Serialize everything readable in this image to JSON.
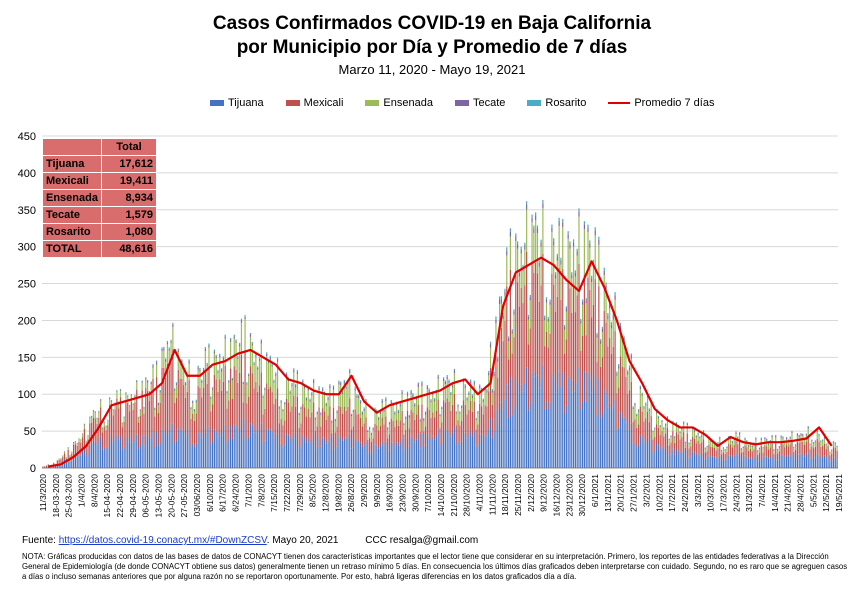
{
  "header": {
    "title_line1": "Casos Confirmados COVID-19 en Baja California",
    "title_line2": "por Municipio por Día y Promedio de 7 días",
    "subtitle": "Marzo 11, 2020  - Mayo 19, 2021"
  },
  "legend": [
    {
      "name": "Tijuana",
      "color": "#4472c4"
    },
    {
      "name": "Mexicali",
      "color": "#c0504d"
    },
    {
      "name": "Ensenada",
      "color": "#9bbb59"
    },
    {
      "name": "Tecate",
      "color": "#8064a2"
    },
    {
      "name": "Rosarito",
      "color": "#4bacc6"
    },
    {
      "name": "Promedio 7 días",
      "color": "#e00000"
    }
  ],
  "totals": {
    "header": "Total",
    "rows": [
      {
        "name": "Tijuana",
        "value": "17,612"
      },
      {
        "name": "Mexicali",
        "value": "19,411"
      },
      {
        "name": "Ensenada",
        "value": "8,934"
      },
      {
        "name": "Tecate",
        "value": "1,579"
      },
      {
        "name": "Rosarito",
        "value": "1,080"
      },
      {
        "name": "TOTAL",
        "value": "48,616"
      }
    ]
  },
  "footer": {
    "source_label": "Fuente:",
    "source_link": "https://datos.covid-19.conacyt.mx/#DownZCSV",
    "source_date": ". Mayo 20, 2021",
    "credit": "CCC       resalga@gmail.com",
    "note": "NOTA: Gráficas producidas con datos de las bases de datos de CONACYT tienen dos características importantes que el lector tiene que considerar en su interpretación. Primero, los reportes de las entidades federativas a la Dirección General de Epidemiología (de donde CONACYT obtiene sus datos) generalmente tienen un retraso mínimo 5 días. En consecuencia los últimos días graficados deben interpretarse con cuidado. Segundo, no es raro que se agreguen casos a días o incluso semanas anteriores que por alguna razón no se reportaron oportunamente. Por esto, habrá ligeras diferencias en los datos graficados día a día."
  },
  "chart_data": {
    "type": "bar",
    "stacked": true,
    "ylim": [
      0,
      450
    ],
    "yticks": [
      0,
      50,
      100,
      150,
      200,
      250,
      300,
      350,
      400,
      450
    ],
    "x_tick_labels": [
      "11/3/2020",
      "18-03-2020",
      "25-03-2020",
      "1/4/2020",
      "8/4/2020",
      "15-04-2020",
      "22-04-2020",
      "29-04-2020",
      "06-05-2020",
      "13-05-2020",
      "20-05-2020",
      "27-05-2020",
      "03/06/2020",
      "6/10/2020",
      "6/17/2020",
      "6/24/2020",
      "7/1/2020",
      "7/8/2020",
      "7/15/2020",
      "7/22/2020",
      "7/29/2020",
      "8/5/2020",
      "12/8/2020",
      "19/8/2020",
      "26/8/2020",
      "2/9/2020",
      "9/9/2020",
      "16/9/2020",
      "23/9/2020",
      "30/9/2020",
      "7/10/2020",
      "14/10/2020",
      "21/10/2020",
      "28/10/2020",
      "4/11/2020",
      "11/11/2020",
      "18/11/2020",
      "25/11/2020",
      "2/12/2020",
      "9/12/2020",
      "16/12/2020",
      "23/12/2020",
      "30/12/2020",
      "6/1/2021",
      "13/1/2021",
      "20/1/2021",
      "27/1/2021",
      "3/2/2021",
      "10/2/2021",
      "17/2/2021",
      "24/2/2021",
      "3/3/2021",
      "10/3/2021",
      "17/3/2021",
      "24/3/2021",
      "31/3/2021",
      "7/4/2021",
      "14/4/2021",
      "21/4/2021",
      "28/4/2021",
      "5/5/2021",
      "12/5/2021",
      "19/5/2021"
    ],
    "weekly_series": {
      "note": "Approximate daily totals (stacked bars) read per week from the plot, in cases.",
      "total": [
        2,
        8,
        25,
        45,
        75,
        90,
        95,
        100,
        115,
        130,
        190,
        140,
        125,
        150,
        155,
        170,
        185,
        160,
        145,
        125,
        120,
        110,
        105,
        100,
        130,
        95,
        75,
        85,
        90,
        100,
        105,
        110,
        120,
        120,
        105,
        110,
        210,
        290,
        320,
        330,
        320,
        300,
        310,
        320,
        280,
        230,
        170,
        115,
        85,
        65,
        60,
        55,
        50,
        35,
        40,
        45,
        35,
        40,
        40,
        45,
        45,
        55,
        35
      ],
      "tijuana": [
        1,
        4,
        12,
        20,
        35,
        40,
        40,
        40,
        42,
        45,
        55,
        50,
        45,
        50,
        50,
        55,
        60,
        55,
        50,
        45,
        42,
        40,
        40,
        38,
        45,
        35,
        30,
        32,
        35,
        40,
        42,
        45,
        50,
        50,
        45,
        45,
        80,
        110,
        120,
        125,
        125,
        115,
        120,
        125,
        110,
        90,
        65,
        45,
        35,
        28,
        25,
        22,
        20,
        15,
        16,
        18,
        14,
        15,
        16,
        18,
        18,
        20,
        14
      ],
      "mexicali": [
        1,
        3,
        10,
        20,
        30,
        40,
        45,
        50,
        60,
        65,
        100,
        65,
        55,
        70,
        70,
        75,
        80,
        65,
        55,
        45,
        45,
        40,
        38,
        35,
        45,
        35,
        25,
        30,
        30,
        35,
        35,
        35,
        40,
        40,
        35,
        40,
        90,
        130,
        140,
        140,
        130,
        125,
        125,
        125,
        110,
        90,
        65,
        40,
        30,
        22,
        22,
        20,
        18,
        12,
        14,
        16,
        12,
        14,
        14,
        16,
        16,
        22,
        13
      ],
      "ensenada": [
        0,
        1,
        2,
        4,
        8,
        8,
        8,
        8,
        10,
        15,
        30,
        20,
        20,
        25,
        30,
        35,
        40,
        35,
        35,
        30,
        28,
        25,
        22,
        22,
        35,
        20,
        15,
        18,
        20,
        20,
        22,
        25,
        25,
        25,
        20,
        20,
        30,
        40,
        50,
        55,
        55,
        50,
        55,
        60,
        50,
        40,
        32,
        25,
        16,
        12,
        10,
        10,
        9,
        6,
        7,
        8,
        6,
        8,
        7,
        8,
        8,
        10,
        6
      ],
      "tecate": [
        0,
        0,
        1,
        1,
        1,
        1,
        1,
        1,
        2,
        3,
        3,
        3,
        3,
        3,
        3,
        3,
        3,
        3,
        3,
        3,
        3,
        3,
        3,
        3,
        3,
        3,
        3,
        3,
        3,
        3,
        4,
        3,
        3,
        3,
        3,
        3,
        6,
        6,
        6,
        6,
        6,
        6,
        6,
        6,
        6,
        6,
        5,
        3,
        2,
        2,
        2,
        2,
        2,
        1,
        2,
        2,
        2,
        2,
        2,
        2,
        2,
        2,
        1
      ],
      "rosarito": [
        0,
        0,
        0,
        0,
        1,
        1,
        1,
        1,
        1,
        2,
        2,
        2,
        2,
        2,
        2,
        2,
        2,
        2,
        2,
        2,
        2,
        2,
        2,
        2,
        2,
        2,
        2,
        2,
        2,
        2,
        2,
        2,
        2,
        2,
        2,
        2,
        4,
        4,
        4,
        4,
        4,
        4,
        4,
        4,
        4,
        4,
        3,
        2,
        2,
        1,
        1,
        1,
        1,
        1,
        1,
        1,
        1,
        1,
        1,
        1,
        1,
        1,
        1
      ],
      "promedio_7_dias": [
        2,
        5,
        15,
        30,
        55,
        85,
        90,
        95,
        100,
        115,
        160,
        125,
        125,
        140,
        145,
        155,
        160,
        150,
        140,
        120,
        115,
        105,
        100,
        100,
        125,
        90,
        75,
        85,
        90,
        95,
        100,
        105,
        115,
        120,
        100,
        115,
        220,
        265,
        275,
        285,
        275,
        255,
        240,
        280,
        245,
        200,
        145,
        115,
        80,
        65,
        55,
        55,
        45,
        30,
        42,
        35,
        32,
        35,
        35,
        37,
        40,
        55,
        30
      ]
    }
  }
}
